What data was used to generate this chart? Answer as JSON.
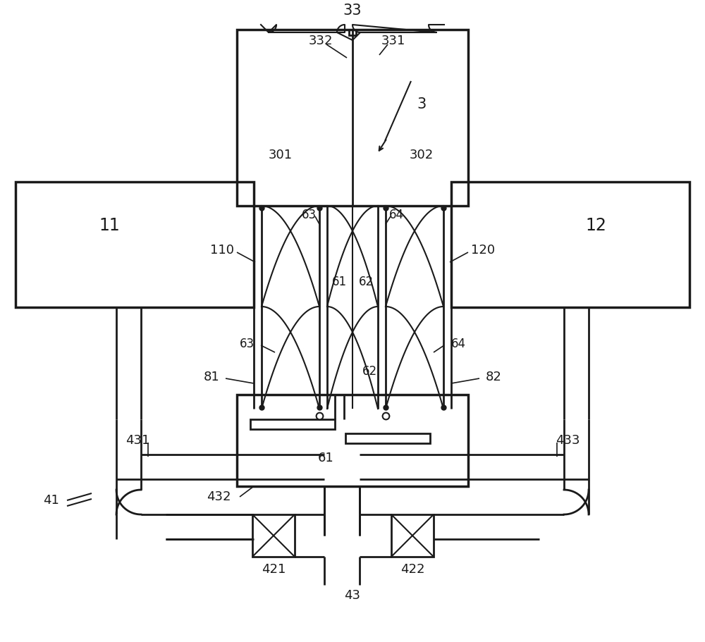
{
  "bg": "#ffffff",
  "lc": "#1a1a1a",
  "lw": 1.5,
  "lw2": 2.0,
  "lw3": 2.5,
  "fs": 13,
  "fs2": 15,
  "fs3": 17
}
